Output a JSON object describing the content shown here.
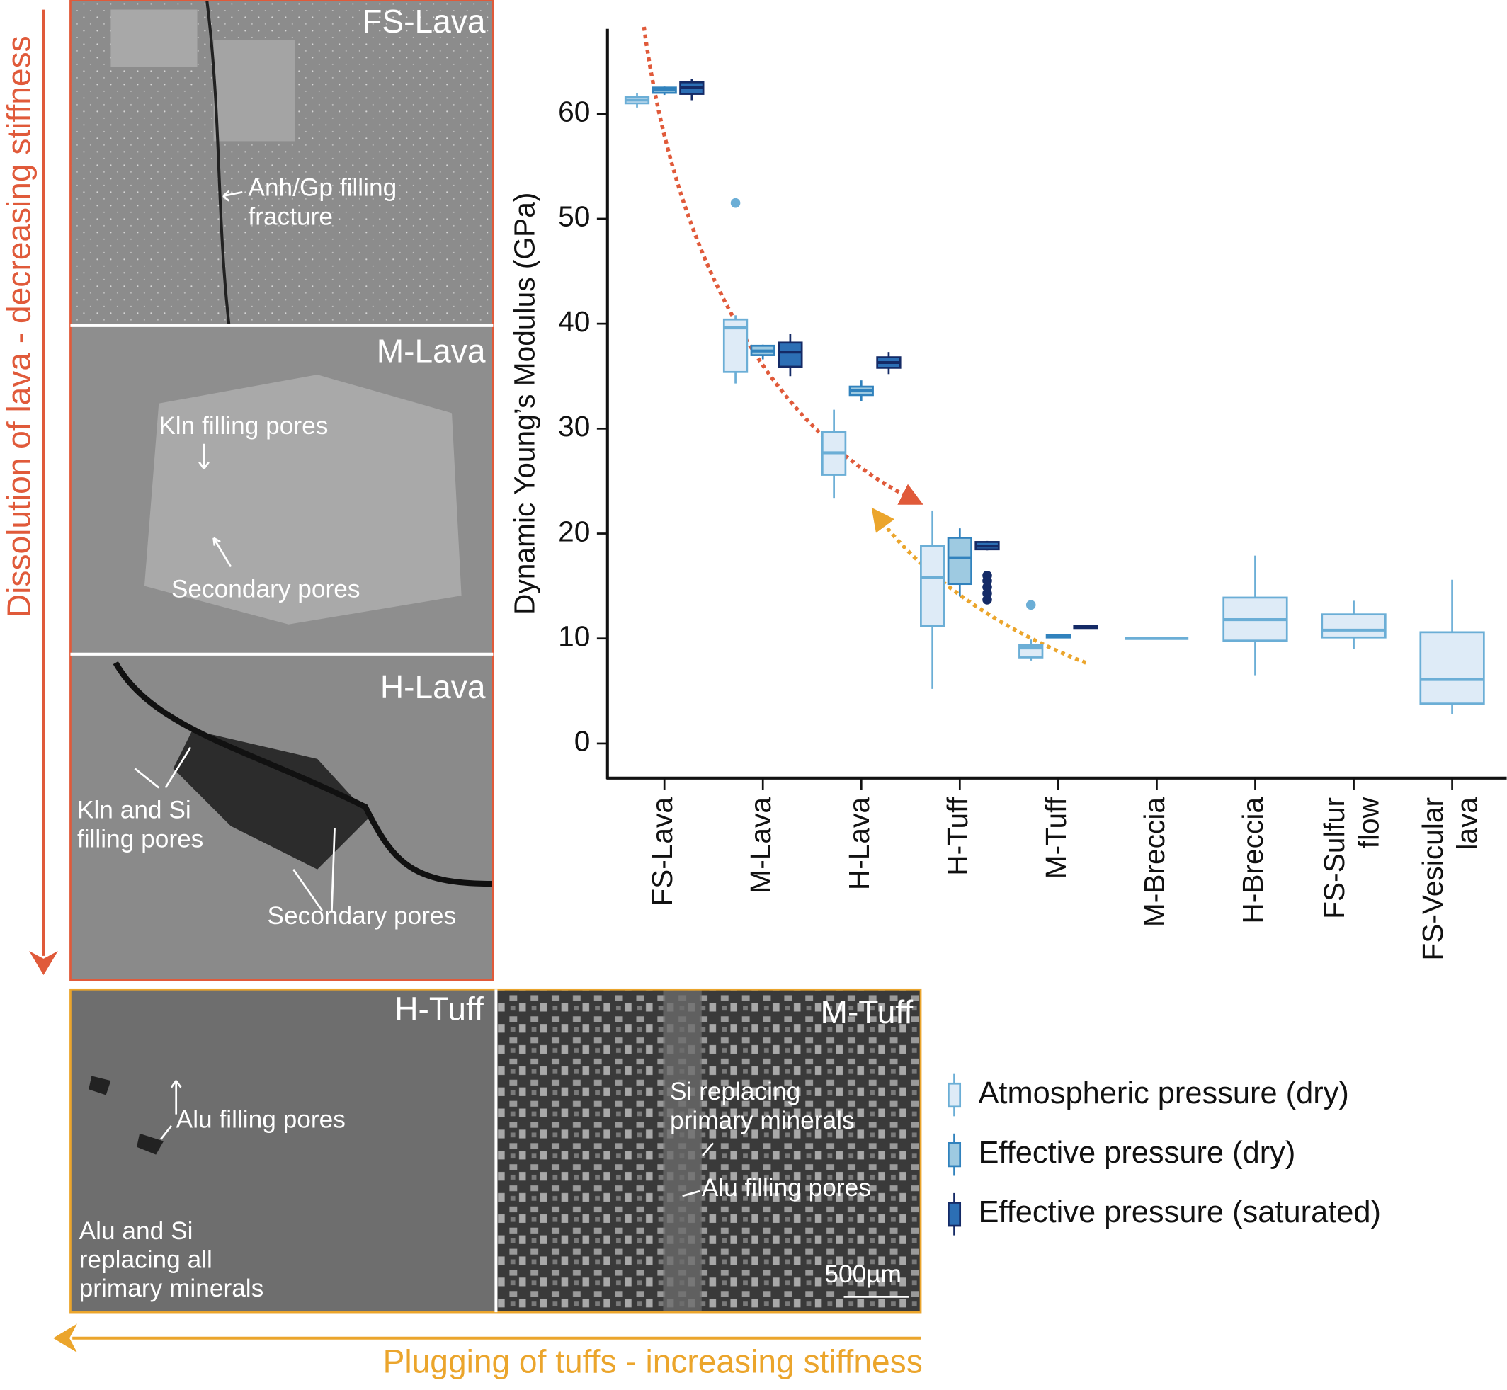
{
  "panels": [
    {
      "title": "FS-Lava",
      "notes": [
        [
          "Anh/Gp filling",
          "fracture"
        ]
      ]
    },
    {
      "title": "M-Lava",
      "notes": [
        [
          "Kln filling pores"
        ],
        [
          "Secondary pores"
        ]
      ]
    },
    {
      "title": "H-Lava",
      "notes": [
        [
          "Kln and Si",
          "filling pores"
        ],
        [
          "Secondary pores"
        ]
      ]
    },
    {
      "title": "H-Tuff",
      "notes": [
        [
          "Alu filling pores"
        ],
        [
          "Alu and Si",
          "replacing all",
          "primary minerals"
        ]
      ]
    },
    {
      "title": "M-Tuff",
      "notes": [
        [
          "Si replacing",
          "primary minerals"
        ],
        [
          "Alu filling pores"
        ]
      ]
    }
  ],
  "scale_bar": "500µm",
  "side_label": "Dissolution of lava - decreasing stiffness",
  "bottom_label": "Plugging of tuffs - increasing stiffness",
  "chart_data": {
    "type": "box",
    "y_label": "Dynamic Young’s Modulus (GPa)",
    "categories": [
      [
        "FS-Lava"
      ],
      [
        "M-Lava"
      ],
      [
        "H-Lava"
      ],
      [
        "H-Tuff"
      ],
      [
        "M-Tuff"
      ],
      [
        "M-Breccia"
      ],
      [
        "H-Breccia"
      ],
      [
        "FS-Sulfur",
        "flow"
      ],
      [
        "FS-Vesicular",
        "lava"
      ]
    ],
    "ylim": [
      -3.3,
      68.1
    ],
    "yticks": [
      0,
      10,
      20,
      30,
      40,
      50,
      60
    ],
    "series": [
      {
        "name": "Atmospheric pressure (dry)",
        "color": "#deebf7",
        "stroke": "#6baed6",
        "values": [
          {
            "min": 60.6,
            "q1": 61.0,
            "median": 61.3,
            "q3": 61.6,
            "max": 62.0
          },
          {
            "min": 34.3,
            "q1": 35.4,
            "median": 39.6,
            "q3": 40.4,
            "max": 40.8,
            "outliers": [
              51.5
            ]
          },
          {
            "min": 23.4,
            "q1": 25.6,
            "median": 27.7,
            "q3": 29.7,
            "max": 31.8
          },
          {
            "min": 5.2,
            "q1": 11.2,
            "median": 15.8,
            "q3": 18.8,
            "max": 22.2
          },
          {
            "min": 7.9,
            "q1": 8.2,
            "median": 9.1,
            "q3": 9.4,
            "max": 9.9,
            "outliers": [
              13.2
            ]
          },
          {
            "min": 10.0,
            "q1": 10.0,
            "median": 10.0,
            "q3": 10.0,
            "max": 10.0
          },
          {
            "min": 6.5,
            "q1": 9.8,
            "median": 11.8,
            "q3": 13.9,
            "max": 17.9
          },
          {
            "min": 9.0,
            "q1": 10.1,
            "median": 10.8,
            "q3": 12.3,
            "max": 13.6
          },
          {
            "min": 2.8,
            "q1": 3.8,
            "median": 6.1,
            "q3": 10.6,
            "max": 15.6
          }
        ]
      },
      {
        "name": "Effective pressure (dry)",
        "color": "#9ecae1",
        "stroke": "#3182bd",
        "values": [
          {
            "min": 61.8,
            "q1": 62.0,
            "median": 62.3,
            "q3": 62.5,
            "max": 62.6
          },
          {
            "min": 36.6,
            "q1": 37.0,
            "median": 37.4,
            "q3": 37.9,
            "max": 38.0
          },
          {
            "min": 32.6,
            "q1": 33.2,
            "median": 33.6,
            "q3": 34.0,
            "max": 34.6
          },
          {
            "min": 14.0,
            "q1": 15.2,
            "median": 17.7,
            "q3": 19.6,
            "max": 20.5
          },
          {
            "min": 10.1,
            "q1": 10.1,
            "median": 10.2,
            "q3": 10.3,
            "max": 10.3
          },
          null,
          null,
          null,
          null
        ]
      },
      {
        "name": "Effective pressure (saturated)",
        "color": "#2c6fb5",
        "stroke": "#142a66",
        "values": [
          {
            "min": 61.3,
            "q1": 61.9,
            "median": 62.5,
            "q3": 63.0,
            "max": 63.3
          },
          {
            "min": 35.0,
            "q1": 35.9,
            "median": 37.3,
            "q3": 38.2,
            "max": 39.0
          },
          {
            "min": 35.2,
            "q1": 35.8,
            "median": 36.3,
            "q3": 36.8,
            "max": 37.3
          },
          {
            "min": 18.4,
            "q1": 18.5,
            "median": 18.8,
            "q3": 19.2,
            "max": 19.3,
            "outliers": [
              13.7,
              14.3,
              14.9,
              15.5,
              16.0
            ]
          },
          {
            "min": 11.0,
            "q1": 11.0,
            "median": 11.1,
            "q3": 11.2,
            "max": 11.2
          },
          null,
          null,
          null,
          null
        ]
      }
    ]
  }
}
